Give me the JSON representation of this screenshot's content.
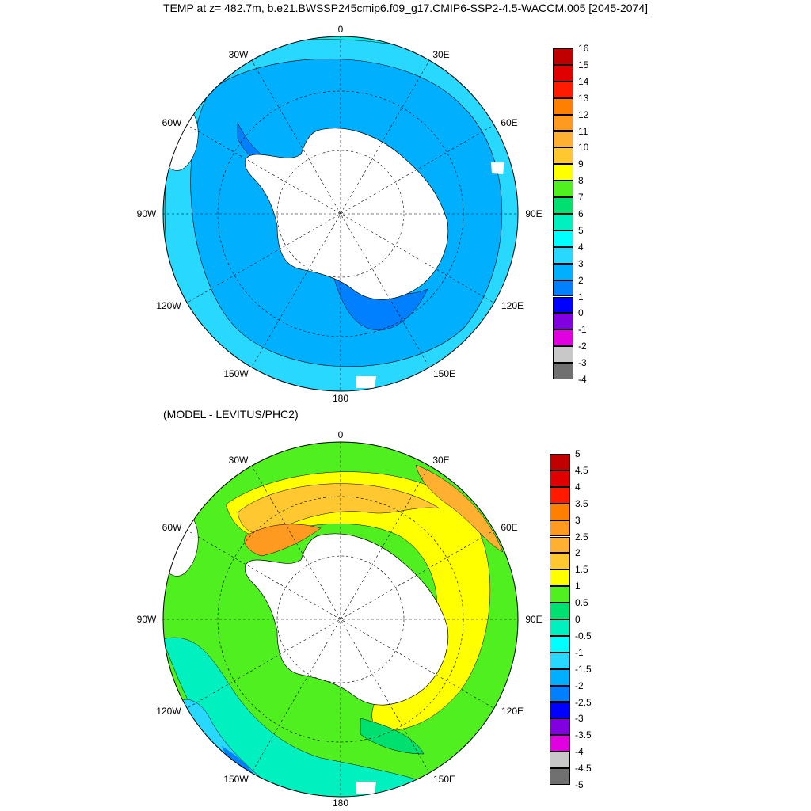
{
  "figure": {
    "title": "TEMP at z= 482.7m, b.e21.BWSSP245cmip6.f09_g17.CMIP6-SSP2-4.5-WACCM.005 [2045-2074]",
    "subtitle": "(MODEL - LEVITUS/PHC2)"
  },
  "lon_labels": {
    "n0": "0",
    "e30": "30E",
    "e60": "60E",
    "e90": "90E",
    "e120": "120E",
    "e150": "150E",
    "s180": "180",
    "w150": "150W",
    "w120": "120W",
    "w90": "90W",
    "w60": "60W",
    "w30": "30W"
  },
  "top_colorbar": {
    "labels": [
      "16",
      "15",
      "14",
      "13",
      "12",
      "11",
      "10",
      "9",
      "8",
      "7",
      "6",
      "5",
      "4",
      "3",
      "2",
      "1",
      "0",
      "-1",
      "-2",
      "-3",
      "-4"
    ],
    "colors": [
      "#c00000",
      "#e00000",
      "#ff1a00",
      "#ff8000",
      "#ff9a20",
      "#ffb030",
      "#ffc830",
      "#ffff00",
      "#50f020",
      "#00e070",
      "#00f0c0",
      "#00ffff",
      "#28d8ff",
      "#00b0ff",
      "#0080ff",
      "#0000ff",
      "#8000e0",
      "#e000e0",
      "#c8c8c8",
      "#707070"
    ]
  },
  "bottom_colorbar": {
    "labels": [
      "5",
      "4.5",
      "4",
      "3.5",
      "3",
      "2.5",
      "2",
      "1.5",
      "1",
      "0.5",
      "0",
      "-0.5",
      "-1",
      "-1.5",
      "-2",
      "-2.5",
      "-3",
      "-3.5",
      "-4",
      "-4.5",
      "-5"
    ],
    "colors": [
      "#c00000",
      "#e00000",
      "#ff1a00",
      "#ff8000",
      "#ff9a20",
      "#ffb030",
      "#ffc830",
      "#ffff00",
      "#50f020",
      "#00e070",
      "#00f0c0",
      "#00ffff",
      "#28d8ff",
      "#00b0ff",
      "#0080ff",
      "#0000ff",
      "#8000e0",
      "#e000e0",
      "#c8c8c8",
      "#707070"
    ]
  },
  "map_colors": {
    "land": "#ffffff",
    "top_inner": "#00b0ff",
    "top_mid": "#28d8ff",
    "top_outer": "#00f0f0",
    "top_shelf": "#0080ff",
    "top_deep": "#0000ff",
    "top_magenta": "#e000e0",
    "bot_green": "#50f020",
    "bot_yellow": "#ffff00",
    "bot_orange": "#ffc830",
    "bot_dkorange": "#ffb030",
    "bot_teal": "#00e070",
    "bot_cyan": "#00f0c0",
    "bot_aqua": "#28d8ff",
    "bot_blue": "#0080ff"
  }
}
